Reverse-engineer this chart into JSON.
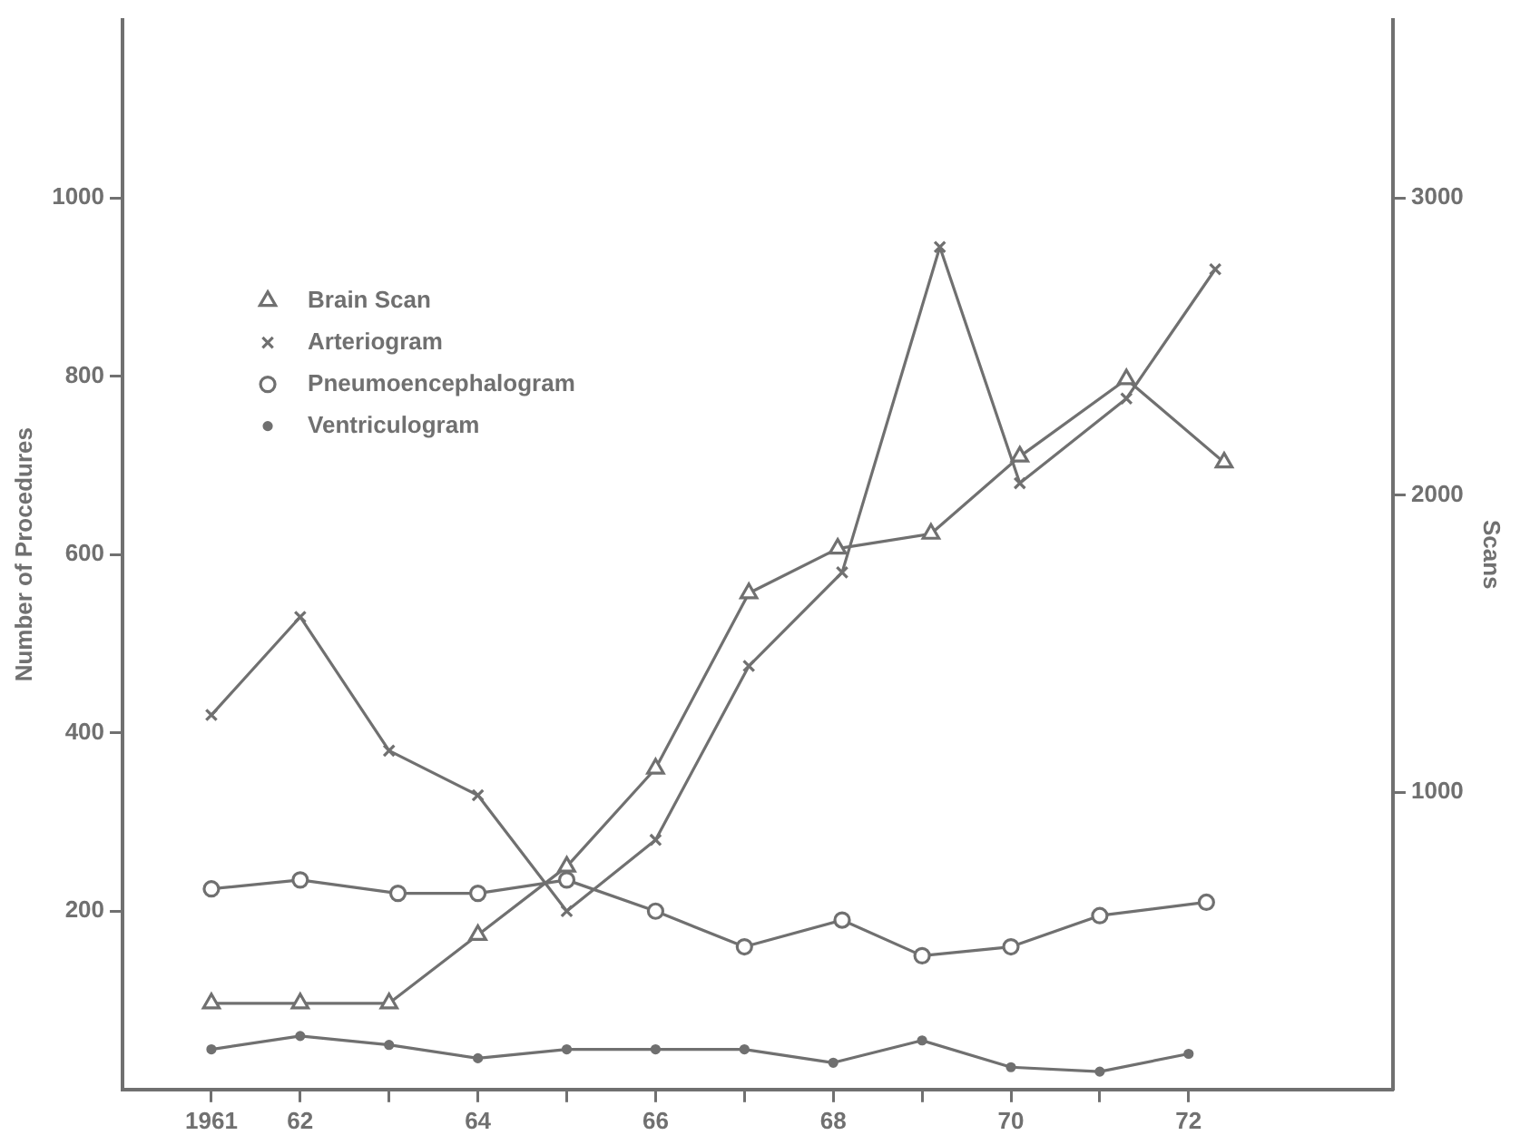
{
  "chart_data": {
    "type": "line",
    "ylabel": "Number of Procedures",
    "y2label": "Scans",
    "xlim": [
      1960,
      1974.3
    ],
    "xticks": [
      {
        "value": 1961,
        "label": "1961"
      },
      {
        "value": 1962,
        "label": "62"
      },
      {
        "value": 1963,
        "label": null
      },
      {
        "value": 1964,
        "label": "64"
      },
      {
        "value": 1965,
        "label": null
      },
      {
        "value": 1966,
        "label": "66"
      },
      {
        "value": 1967,
        "label": null
      },
      {
        "value": 1968,
        "label": "68"
      },
      {
        "value": 1969,
        "label": null
      },
      {
        "value": 1970,
        "label": "70"
      },
      {
        "value": 1971,
        "label": null
      },
      {
        "value": 1972,
        "label": "72"
      }
    ],
    "ylim": [
      0,
      1200
    ],
    "yticks": [
      200,
      400,
      600,
      800,
      1000
    ],
    "y2lim": [
      0,
      3600
    ],
    "y2ticks": [
      1000,
      2000,
      3000
    ],
    "grid": false,
    "legend": "top left",
    "line_style": "solid",
    "series": [
      {
        "name": "Brain Scan",
        "color": "#707070",
        "marker": "triangle",
        "axis": "y2",
        "x": [
          1961,
          1962,
          1963,
          1964,
          1965,
          1966,
          1967.05,
          1968.05,
          1969.1,
          1970.1,
          1971.3,
          1972.4
        ],
        "values": [
          290,
          290,
          290,
          520,
          750,
          1080,
          1670,
          1820,
          1870,
          2130,
          2390,
          2110
        ]
      },
      {
        "name": "Arteriogram",
        "color": "#707070",
        "marker": "cross",
        "x": [
          1961,
          1962,
          1963,
          1964,
          1965,
          1966,
          1967.05,
          1968.1,
          1969.2,
          1970.1,
          1971.3,
          1972.3
        ],
        "values": [
          420,
          530,
          380,
          330,
          200,
          280,
          475,
          580,
          945,
          680,
          775,
          920
        ]
      },
      {
        "name": "Pneumoencephalogram",
        "color": "#707070",
        "marker": "circle",
        "x": [
          1961,
          1962,
          1963.1,
          1964,
          1965,
          1966,
          1967,
          1968.1,
          1969,
          1970,
          1971,
          1972.2
        ],
        "values": [
          225,
          235,
          220,
          220,
          235,
          200,
          160,
          190,
          150,
          160,
          195,
          210
        ]
      },
      {
        "name": "Ventriculogram",
        "color": "#707070",
        "marker": "dot",
        "x": [
          1961,
          1962,
          1963,
          1964,
          1965,
          1966,
          1967,
          1968,
          1969,
          1970,
          1971,
          1972
        ],
        "values": [
          45,
          60,
          50,
          35,
          45,
          45,
          45,
          30,
          55,
          25,
          20,
          40
        ]
      }
    ]
  }
}
